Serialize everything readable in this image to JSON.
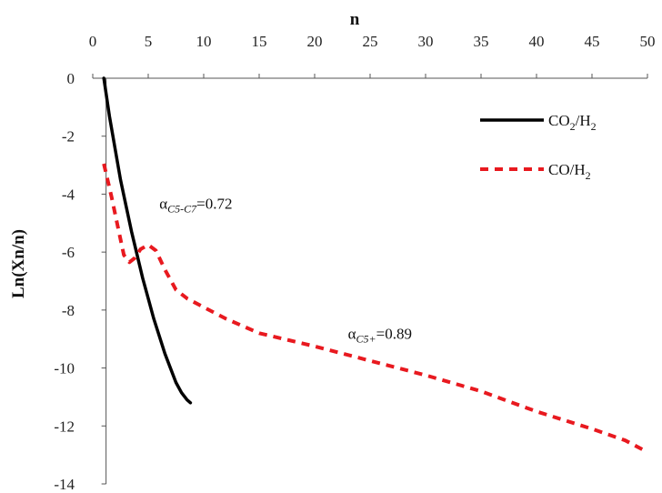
{
  "chart_data": {
    "type": "line",
    "title": "",
    "xlabel": "n",
    "ylabel": "Ln(Xn/n)",
    "xlim": [
      0,
      50
    ],
    "ylim": [
      -14,
      0
    ],
    "x_ticks": [
      0,
      5,
      10,
      15,
      20,
      25,
      30,
      35,
      40,
      45,
      50
    ],
    "y_ticks": [
      0,
      -2,
      -4,
      -6,
      -8,
      -10,
      -12,
      -14
    ],
    "x_axis_position": "top",
    "grid": false,
    "legend_position": "top-right",
    "series": [
      {
        "name": "CO2/H2",
        "legend": {
          "base": "CO",
          "sub": "2",
          "mid": "/H",
          "sub2": "2"
        },
        "color": "#000000",
        "style": "solid",
        "points": [
          [
            1.0,
            0.0
          ],
          [
            1.5,
            -1.3
          ],
          [
            2.0,
            -2.4
          ],
          [
            2.5,
            -3.5
          ],
          [
            3.0,
            -4.4
          ],
          [
            3.5,
            -5.3
          ],
          [
            4.0,
            -6.1
          ],
          [
            4.5,
            -6.9
          ],
          [
            5.0,
            -7.6
          ],
          [
            5.5,
            -8.3
          ],
          [
            6.0,
            -8.9
          ],
          [
            6.5,
            -9.5
          ],
          [
            7.0,
            -10.0
          ],
          [
            7.5,
            -10.5
          ],
          [
            8.0,
            -10.85
          ],
          [
            8.5,
            -11.1
          ],
          [
            8.8,
            -11.2
          ]
        ]
      },
      {
        "name": "CO/H2",
        "legend": {
          "base": "CO",
          "sub": "",
          "mid": "/H",
          "sub2": "2"
        },
        "color": "#e8191f",
        "style": "dashed",
        "points": [
          [
            1.0,
            -2.95
          ],
          [
            1.7,
            -4.1
          ],
          [
            2.3,
            -5.2
          ],
          [
            2.8,
            -6.1
          ],
          [
            3.3,
            -6.35
          ],
          [
            3.8,
            -6.2
          ],
          [
            4.3,
            -5.9
          ],
          [
            5.0,
            -5.75
          ],
          [
            5.7,
            -5.95
          ],
          [
            6.5,
            -6.6
          ],
          [
            7.5,
            -7.3
          ],
          [
            8.5,
            -7.6
          ],
          [
            10,
            -7.9
          ],
          [
            12,
            -8.3
          ],
          [
            15,
            -8.8
          ],
          [
            20,
            -9.25
          ],
          [
            25,
            -9.75
          ],
          [
            30,
            -10.25
          ],
          [
            35,
            -10.8
          ],
          [
            40,
            -11.5
          ],
          [
            45,
            -12.1
          ],
          [
            48,
            -12.5
          ],
          [
            50,
            -12.9
          ]
        ]
      }
    ],
    "annotations": [
      {
        "alpha": "α",
        "sub": "C5-C7",
        "rest": "=0.72",
        "x": 6.0,
        "y": -4.5
      },
      {
        "alpha": "α",
        "sub": "C5+",
        "rest": "=0.89",
        "x": 23.0,
        "y": -9.0
      }
    ]
  }
}
